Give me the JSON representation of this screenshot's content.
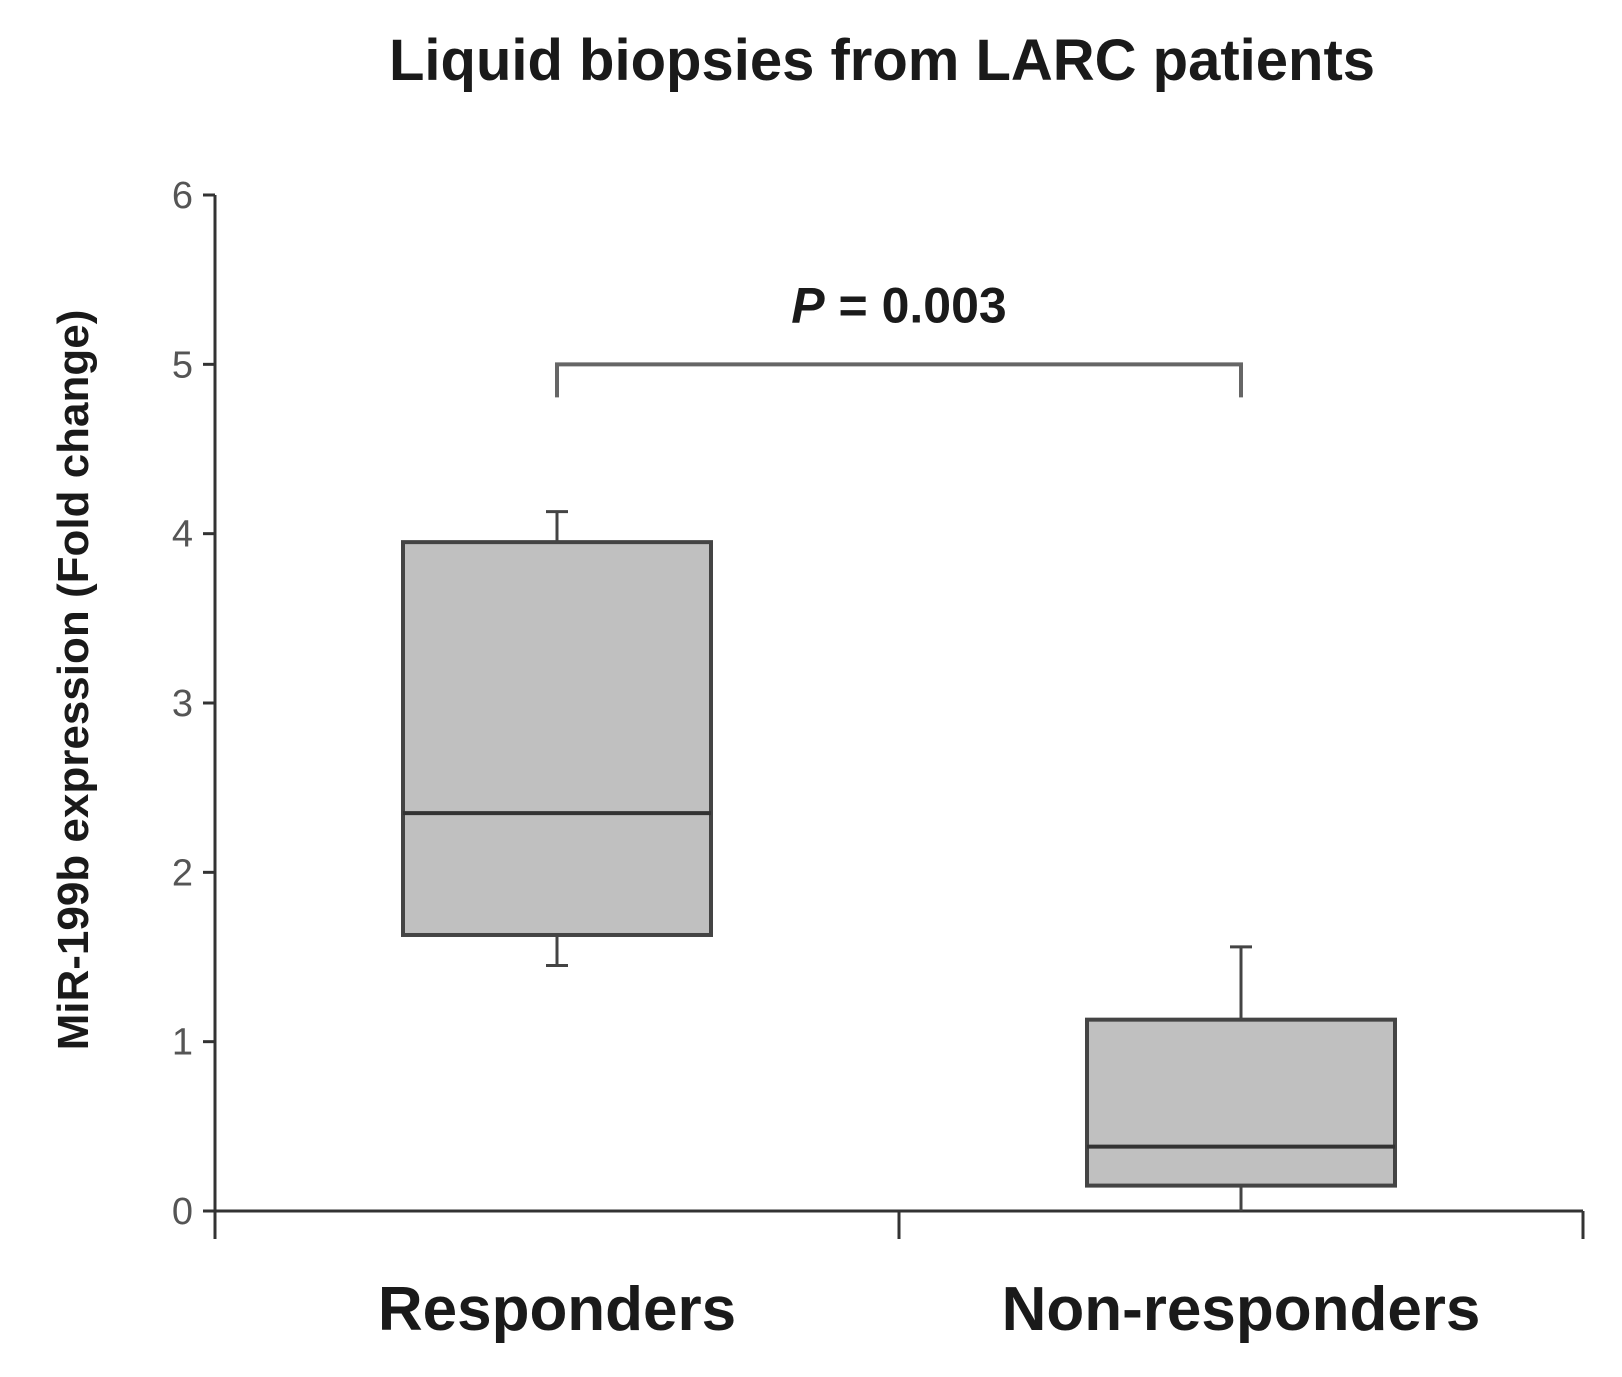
{
  "chart_data": {
    "type": "box",
    "title": "Liquid biopsies from LARC patients",
    "xlabel": "",
    "ylabel": "MiR-199b expression (Fold change)",
    "ylim": [
      0,
      6
    ],
    "yticks": [
      "0",
      "1",
      "2",
      "3",
      "4",
      "5",
      "6"
    ],
    "categories": [
      "Responders",
      "Non-responders"
    ],
    "boxes": [
      {
        "category": "Responders",
        "whisker_low": 1.45,
        "q1": 1.63,
        "median": 2.35,
        "q3": 3.95,
        "whisker_high": 4.13
      },
      {
        "category": "Non-responders",
        "whisker_low": 0.0,
        "q1": 0.15,
        "median": 0.38,
        "q3": 1.13,
        "whisker_high": 1.56
      }
    ],
    "annotation": {
      "p_symbol": "P",
      "p_rest": " = 0.003",
      "between": [
        "Responders",
        "Non-responders"
      ],
      "bracket_y": 5.0
    },
    "grid": false,
    "legend": "none"
  },
  "colors": {
    "box_fill": "#c0c0c0",
    "box_edge": "#444444",
    "axis": "#333333",
    "bracket": "#666666"
  }
}
